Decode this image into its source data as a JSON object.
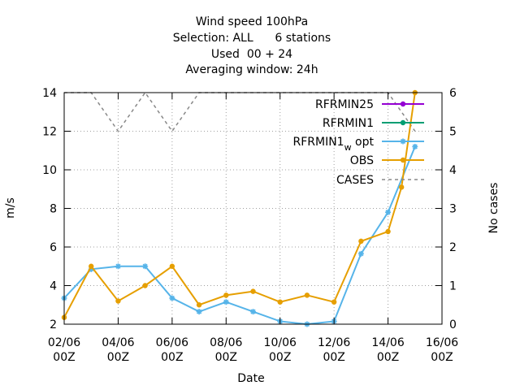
{
  "chart_data": {
    "type": "line",
    "title_lines": [
      "Wind speed 100hPa",
      "Selection: ALL      6 stations",
      "Used  00 + 24",
      "Averaging window: 24h"
    ],
    "xlabel": "Date",
    "ylabel": "m/s",
    "y2label": "No cases",
    "x_range": [
      "2022-06-02T00:00",
      "2022-06-16T00:00"
    ],
    "ylim": [
      2,
      14
    ],
    "y2lim": [
      0,
      6
    ],
    "y_ticks": [
      2,
      4,
      6,
      8,
      10,
      12,
      14
    ],
    "y2_ticks": [
      0,
      1,
      2,
      3,
      4,
      5,
      6
    ],
    "x_ticks": [
      {
        "x": "2022-06-02T00:00",
        "line1": "02/06",
        "line2": "00Z"
      },
      {
        "x": "2022-06-04T00:00",
        "line1": "04/06",
        "line2": "00Z"
      },
      {
        "x": "2022-06-06T00:00",
        "line1": "06/06",
        "line2": "00Z"
      },
      {
        "x": "2022-06-08T00:00",
        "line1": "08/06",
        "line2": "00Z"
      },
      {
        "x": "2022-06-10T00:00",
        "line1": "10/06",
        "line2": "00Z"
      },
      {
        "x": "2022-06-12T00:00",
        "line1": "12/06",
        "line2": "00Z"
      },
      {
        "x": "2022-06-14T00:00",
        "line1": "14/06",
        "line2": "00Z"
      },
      {
        "x": "2022-06-16T00:00",
        "line1": "16/06",
        "line2": "00Z"
      }
    ],
    "grid": true,
    "legend_position": "top-right",
    "series": [
      {
        "key": "RFRMIN25",
        "label": "RFRMIN25",
        "color": "#9400d3",
        "axis": "y",
        "dash": false,
        "marker": "circle",
        "points": []
      },
      {
        "key": "RFRMIN1",
        "label": "RFRMIN1",
        "color": "#009e73",
        "axis": "y",
        "dash": false,
        "marker": "circle",
        "points": []
      },
      {
        "key": "RFRMIN1_w_opt",
        "label_main": "RFRMIN1",
        "label_sub": "w",
        "label_rest": "opt",
        "color": "#56b4e9",
        "axis": "y",
        "dash": false,
        "marker": "star",
        "points": [
          [
            "2022-06-02T00:00",
            3.35
          ],
          [
            "2022-06-03T00:00",
            4.85
          ],
          [
            "2022-06-04T00:00",
            5.0
          ],
          [
            "2022-06-05T00:00",
            5.0
          ],
          [
            "2022-06-06T00:00",
            3.35
          ],
          [
            "2022-06-07T00:00",
            2.65
          ],
          [
            "2022-06-08T00:00",
            3.15
          ],
          [
            "2022-06-09T00:00",
            2.65
          ],
          [
            "2022-06-10T00:00",
            2.15
          ],
          [
            "2022-06-11T00:00",
            2.0
          ],
          [
            "2022-06-12T00:00",
            2.15
          ],
          [
            "2022-06-13T00:00",
            5.65
          ],
          [
            "2022-06-14T00:00",
            7.8
          ],
          [
            "2022-06-15T00:00",
            11.2
          ]
        ]
      },
      {
        "key": "OBS",
        "label": "OBS",
        "color": "#e69f00",
        "axis": "y",
        "dash": false,
        "marker": "circle",
        "points": [
          [
            "2022-06-02T00:00",
            2.35
          ],
          [
            "2022-06-03T00:00",
            5.0
          ],
          [
            "2022-06-04T00:00",
            3.2
          ],
          [
            "2022-06-05T00:00",
            4.0
          ],
          [
            "2022-06-06T00:00",
            5.0
          ],
          [
            "2022-06-07T00:00",
            3.0
          ],
          [
            "2022-06-08T00:00",
            3.5
          ],
          [
            "2022-06-09T00:00",
            3.7
          ],
          [
            "2022-06-10T00:00",
            3.15
          ],
          [
            "2022-06-11T00:00",
            3.5
          ],
          [
            "2022-06-12T00:00",
            3.15
          ],
          [
            "2022-06-13T00:00",
            6.3
          ],
          [
            "2022-06-14T00:00",
            6.8
          ],
          [
            "2022-06-14T12:00",
            9.1
          ],
          [
            "2022-06-15T00:00",
            14.0
          ]
        ]
      },
      {
        "key": "CASES",
        "label": "CASES",
        "color": "#888888",
        "axis": "y2",
        "dash": true,
        "marker": "none",
        "points": [
          [
            "2022-06-02T00:00",
            6
          ],
          [
            "2022-06-03T00:00",
            6
          ],
          [
            "2022-06-04T00:00",
            5
          ],
          [
            "2022-06-05T00:00",
            6
          ],
          [
            "2022-06-06T00:00",
            5
          ],
          [
            "2022-06-07T00:00",
            6
          ],
          [
            "2022-06-08T00:00",
            6
          ],
          [
            "2022-06-09T00:00",
            6
          ],
          [
            "2022-06-10T00:00",
            6
          ],
          [
            "2022-06-11T00:00",
            6
          ],
          [
            "2022-06-12T00:00",
            6
          ],
          [
            "2022-06-13T00:00",
            6
          ],
          [
            "2022-06-14T00:00",
            6
          ],
          [
            "2022-06-15T00:00",
            5
          ]
        ]
      }
    ]
  }
}
